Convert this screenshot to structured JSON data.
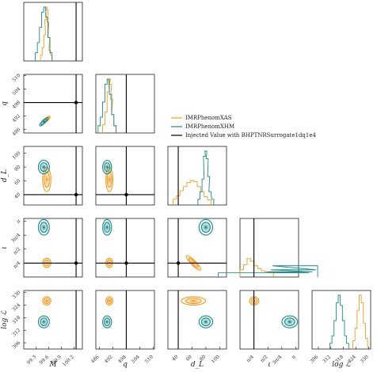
{
  "chart_data": {
    "type": "corner",
    "parameters": [
      {
        "key": "M",
        "label": "M",
        "range": [
          99.0,
          100.4
        ],
        "ticks": [
          "99.3",
          "99.6",
          "99.9",
          "100.2"
        ],
        "injected": 100.25
      },
      {
        "key": "q",
        "label": "q",
        "range": [
          484.5,
          510.5
        ],
        "ticks": [
          "486",
          "492",
          "498",
          "504",
          "510"
        ],
        "injected": 498
      },
      {
        "key": "dL",
        "label": "d_L",
        "range": [
          25,
          110
        ],
        "ticks": [
          "40",
          "60",
          "80",
          "100"
        ],
        "injected": 40
      },
      {
        "key": "iota",
        "label": "ι",
        "range": [
          0,
          3.3
        ],
        "ticks": [
          "π/4",
          "π/2",
          "3π/4",
          "π"
        ],
        "injected": 0.785
      },
      {
        "key": "logL",
        "label": "log ℒ",
        "range": [
          303,
          331
        ],
        "ticks": [
          "306",
          "312",
          "318",
          "324",
          "330"
        ],
        "injected": null
      }
    ],
    "legend": [
      {
        "label": "IMRPhenomXAS",
        "color": "#f39c1f"
      },
      {
        "label": "IMRPhenomXHM",
        "color": "#1b8a8a"
      },
      {
        "label": "Injected Value with BHPTNRSurrogate1dq1e4",
        "color": "#000000"
      }
    ],
    "series": [
      {
        "name": "IMRPhenomXAS",
        "color": "#f39c1f",
        "mean": {
          "M": 99.55,
          "q": 490.5,
          "dL": 62,
          "iota": 0.8,
          "logL": 326
        },
        "sigma": {
          "M": 0.045,
          "q": 0.7,
          "dL": 8,
          "iota": 0.12,
          "logL": 0.9
        },
        "correlations": {
          "M-q": 0.92,
          "dL-iota": -0.8
        },
        "marginals": {
          "M": {
            "x": [
              99.42,
              99.46,
              99.5,
              99.52,
              99.54,
              99.56,
              99.58,
              99.6,
              99.62,
              99.66
            ],
            "density": [
              0.05,
              0.2,
              0.45,
              0.75,
              1.0,
              0.95,
              0.7,
              0.4,
              0.15,
              0.05
            ]
          },
          "q": {
            "x": [
              488,
              489,
              490,
              490.5,
              491,
              491.5,
              492,
              493
            ],
            "density": [
              0.1,
              0.35,
              0.75,
              1.0,
              0.9,
              0.6,
              0.3,
              0.08
            ]
          },
          "dL": {
            "x": [
              35,
              40,
              45,
              50,
              55,
              60,
              65,
              70,
              75,
              80,
              85
            ],
            "density": [
              0.05,
              0.12,
              0.22,
              0.3,
              0.38,
              0.42,
              0.4,
              0.3,
              0.2,
              0.1,
              0.04
            ]
          },
          "iota": {
            "x": [
              0.1,
              0.3,
              0.5,
              0.7,
              0.9,
              1.1,
              1.3,
              1.5,
              1.8
            ],
            "density": [
              0.08,
              0.18,
              0.3,
              0.25,
              0.16,
              0.1,
              0.06,
              0.04,
              0.02
            ]
          },
          "logL": {
            "x": [
              323,
              324,
              325,
              326,
              327,
              328,
              329
            ],
            "density": [
              0.1,
              0.35,
              0.7,
              1.0,
              0.85,
              0.45,
              0.15
            ]
          }
        }
      },
      {
        "name": "IMRPhenomXHM",
        "color": "#1b8a8a",
        "mean": {
          "M": 99.48,
          "q": 489.5,
          "dL": 80,
          "iota": 2.8,
          "logL": 316
        },
        "sigma": {
          "M": 0.06,
          "q": 0.9,
          "dL": 4.5,
          "iota": 0.2,
          "logL": 1.3
        },
        "correlations": {
          "M-q": 0.92,
          "dL-iota": 0.0
        },
        "marginals": {
          "M": {
            "x": [
              99.3,
              99.35,
              99.4,
              99.45,
              99.5,
              99.55,
              99.6,
              99.65
            ],
            "density": [
              0.1,
              0.3,
              0.6,
              0.9,
              1.0,
              0.8,
              0.4,
              0.1
            ]
          },
          "q": {
            "x": [
              486,
              487,
              488,
              489,
              490,
              491,
              492,
              493
            ],
            "density": [
              0.08,
              0.25,
              0.55,
              0.9,
              1.0,
              0.7,
              0.3,
              0.08
            ]
          },
          "dL": {
            "x": [
              70,
              73,
              76,
              78,
              80,
              82,
              84,
              86,
              90
            ],
            "density": [
              0.05,
              0.2,
              0.45,
              0.9,
              1.0,
              0.85,
              0.5,
              0.2,
              0.05
            ]
          },
          "iota": {
            "x": [
              0.05,
              2.6,
              2.8,
              3.0,
              3.1
            ],
            "density": [
              0.02,
              0.02,
              0.04,
              0.08,
              0.16
            ]
          },
          "logL": {
            "x": [
              312,
              313,
              314,
              315,
              316,
              317,
              318,
              319,
              320
            ],
            "density": [
              0.05,
              0.2,
              0.5,
              0.85,
              1.0,
              0.8,
              0.5,
              0.2,
              0.05
            ]
          }
        }
      }
    ]
  }
}
